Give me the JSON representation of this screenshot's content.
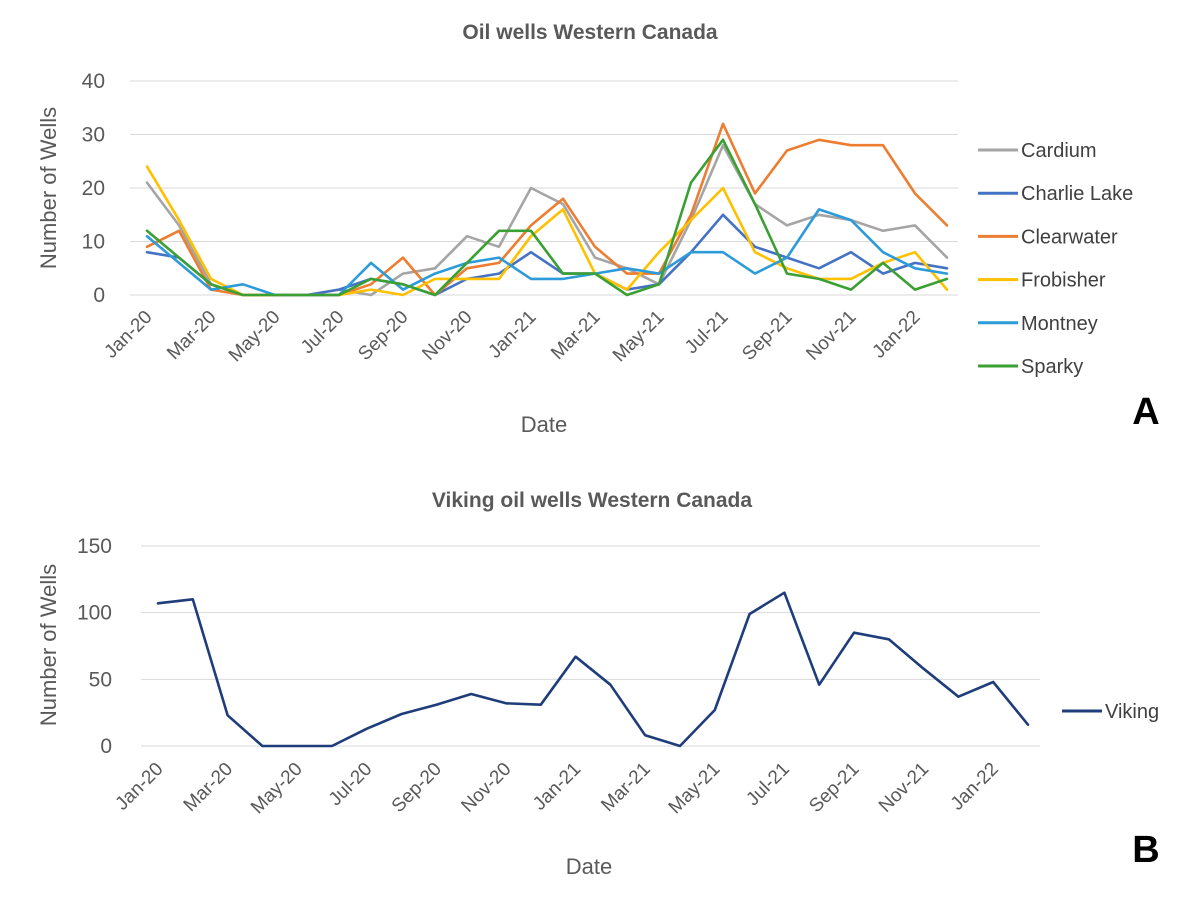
{
  "chart_data": [
    {
      "type": "line",
      "title": "Oil wells Western Canada",
      "xlabel": "Date",
      "ylabel": "Number of Wells",
      "ylim": [
        0,
        40
      ],
      "yticks": [
        "0",
        "10",
        "20",
        "30",
        "40"
      ],
      "grid": true,
      "legend_position": "right",
      "panel_label": "A",
      "x": [
        "Jan-20",
        "Feb-20",
        "Mar-20",
        "Apr-20",
        "May-20",
        "Jun-20",
        "Jul-20",
        "Aug-20",
        "Sep-20",
        "Oct-20",
        "Nov-20",
        "Dec-20",
        "Jan-21",
        "Feb-21",
        "Mar-21",
        "Apr-21",
        "May-21",
        "Jun-21",
        "Jul-21",
        "Aug-21",
        "Sep-21",
        "Oct-21",
        "Nov-21",
        "Dec-21",
        "Jan-22",
        "Feb-22"
      ],
      "xtick_labels": [
        "Jan-20",
        "Mar-20",
        "May-20",
        "Jul-20",
        "Sep-20",
        "Nov-20",
        "Jan-21",
        "Mar-21",
        "May-21",
        "Jul-21",
        "Sep-21",
        "Nov-21",
        "Jan-22"
      ],
      "series": [
        {
          "name": "Cardium",
          "color": "#a5a5a5",
          "values": [
            21,
            13,
            2,
            0,
            0,
            0,
            1,
            0,
            4,
            5,
            11,
            9,
            20,
            17,
            7,
            5,
            2,
            14,
            28,
            17,
            13,
            15,
            14,
            12,
            13,
            7
          ]
        },
        {
          "name": "Charlie Lake",
          "color": "#4472c4",
          "values": [
            8,
            7,
            2,
            0,
            0,
            0,
            1,
            3,
            2,
            0,
            3,
            4,
            8,
            4,
            4,
            1,
            2,
            8,
            15,
            9,
            7,
            5,
            8,
            4,
            6,
            5
          ]
        },
        {
          "name": "Clearwater",
          "color": "#ed7d31",
          "values": [
            9,
            12,
            1,
            0,
            0,
            0,
            0,
            2,
            7,
            0,
            5,
            6,
            13,
            18,
            9,
            4,
            4,
            15,
            32,
            19,
            27,
            29,
            28,
            28,
            19,
            13
          ]
        },
        {
          "name": "Frobisher",
          "color": "#ffc000",
          "values": [
            24,
            14,
            3,
            0,
            0,
            0,
            0,
            1,
            0,
            3,
            3,
            3,
            11,
            16,
            4,
            1,
            8,
            14,
            20,
            8,
            5,
            3,
            3,
            6,
            8,
            1
          ]
        },
        {
          "name": "Montney",
          "color": "#2e9bd9",
          "values": [
            11,
            6,
            1,
            2,
            0,
            0,
            0,
            6,
            1,
            4,
            6,
            7,
            3,
            3,
            4,
            5,
            4,
            8,
            8,
            4,
            7,
            16,
            14,
            8,
            5,
            4
          ]
        },
        {
          "name": "Sparky",
          "color": "#3ba033",
          "values": [
            12,
            7,
            2,
            0,
            0,
            0,
            0,
            3,
            2,
            0,
            6,
            12,
            12,
            4,
            4,
            0,
            2,
            21,
            29,
            17,
            4,
            3,
            1,
            6,
            1,
            3
          ]
        }
      ]
    },
    {
      "type": "line",
      "title": "Viking oil wells Western Canada",
      "xlabel": "Date",
      "ylabel": "Number of Wells",
      "ylim": [
        0,
        150
      ],
      "yticks": [
        "0",
        "50",
        "100",
        "150"
      ],
      "grid": true,
      "legend_position": "right",
      "panel_label": "B",
      "x": [
        "Jan-20",
        "Feb-20",
        "Mar-20",
        "Apr-20",
        "May-20",
        "Jun-20",
        "Jul-20",
        "Aug-20",
        "Sep-20",
        "Oct-20",
        "Nov-20",
        "Dec-20",
        "Jan-21",
        "Feb-21",
        "Mar-21",
        "Apr-21",
        "May-21",
        "Jun-21",
        "Jul-21",
        "Aug-21",
        "Sep-21",
        "Oct-21",
        "Nov-21",
        "Dec-21",
        "Jan-22",
        "Feb-22"
      ],
      "xtick_labels": [
        "Jan-20",
        "Mar-20",
        "May-20",
        "Jul-20",
        "Sep-20",
        "Nov-20",
        "Jan-21",
        "Mar-21",
        "May-21",
        "Jul-21",
        "Sep-21",
        "Nov-21",
        "Jan-22"
      ],
      "series": [
        {
          "name": "Viking",
          "color": "#1f3d7a",
          "values": [
            107,
            110,
            23,
            0,
            0,
            0,
            13,
            24,
            31,
            39,
            32,
            31,
            67,
            46,
            8,
            0,
            27,
            99,
            115,
            46,
            85,
            80,
            58,
            37,
            48,
            16
          ]
        }
      ]
    }
  ]
}
